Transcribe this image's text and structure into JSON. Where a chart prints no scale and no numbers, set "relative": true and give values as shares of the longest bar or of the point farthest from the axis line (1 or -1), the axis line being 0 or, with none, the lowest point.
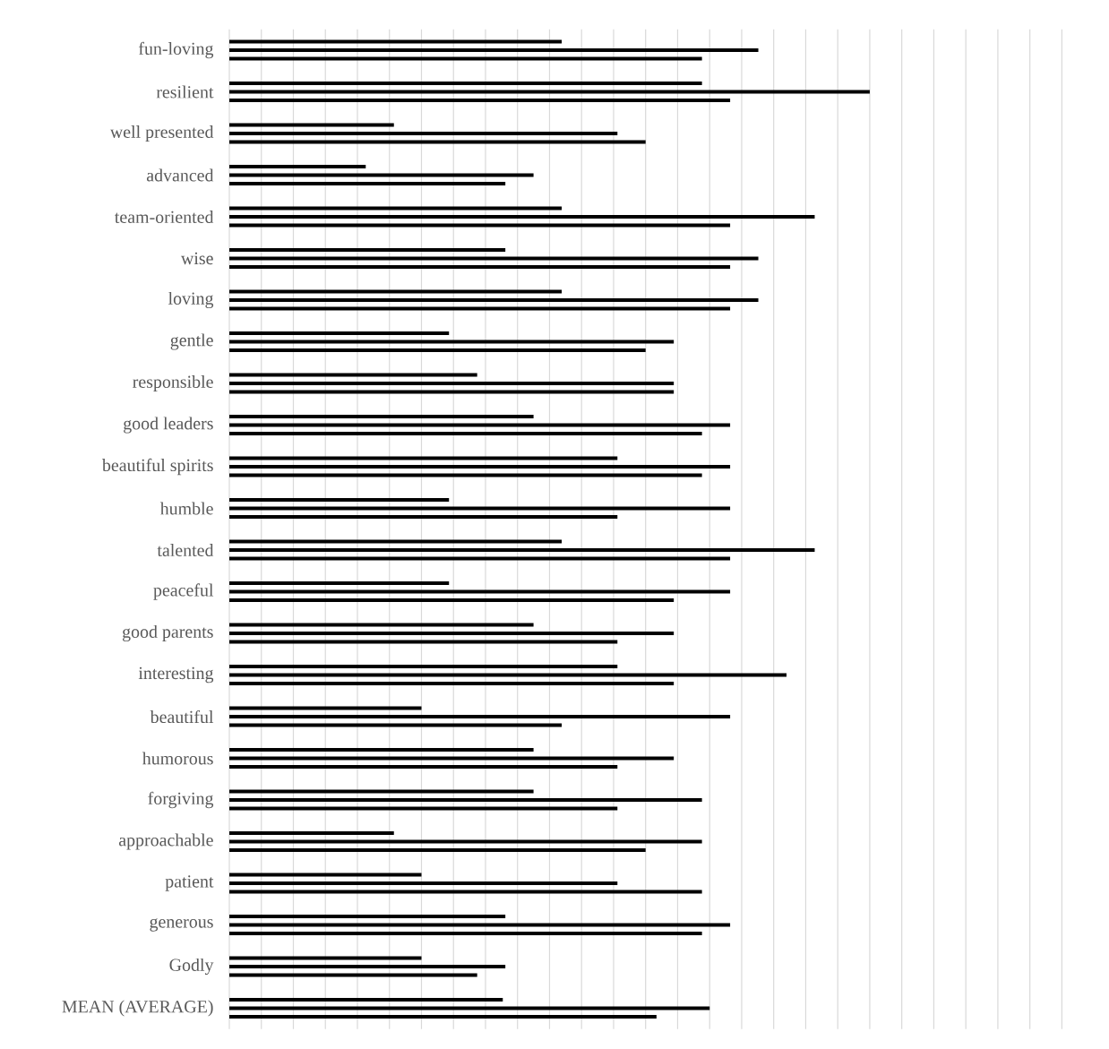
{
  "chart_data": {
    "type": "bar",
    "orientation": "horizontal",
    "relative": true,
    "grid": "x",
    "categories": [
      "fun-loving",
      "resilient",
      "well presented",
      "advanced",
      "team-oriented",
      "wise",
      "loving",
      "gentle",
      "responsible",
      "good leaders",
      "beautiful spirits",
      "humble",
      "talented",
      "peaceful",
      "good parents",
      "interesting",
      "beautiful",
      "humorous",
      "forgiving",
      "approachable",
      "patient",
      "generous",
      "Godly",
      "MEAN (AVERAGE)"
    ],
    "series": [
      {
        "color": "#000000",
        "values": [
          0.519,
          0.738,
          0.257,
          0.213,
          0.519,
          0.431,
          0.519,
          0.343,
          0.387,
          0.475,
          0.606,
          0.343,
          0.519,
          0.343,
          0.475,
          0.606,
          0.3,
          0.475,
          0.475,
          0.257,
          0.3,
          0.431,
          0.3,
          0.427
        ]
      },
      {
        "color": "#000000",
        "values": [
          0.826,
          1,
          0.606,
          0.475,
          0.914,
          0.826,
          0.826,
          0.694,
          0.694,
          0.782,
          0.782,
          0.782,
          0.914,
          0.782,
          0.694,
          0.87,
          0.782,
          0.694,
          0.738,
          0.738,
          0.606,
          0.782,
          0.431,
          0.75
        ]
      },
      {
        "color": "#000000",
        "values": [
          0.738,
          0.782,
          0.65,
          0.431,
          0.782,
          0.782,
          0.782,
          0.65,
          0.694,
          0.738,
          0.738,
          0.606,
          0.782,
          0.694,
          0.606,
          0.694,
          0.519,
          0.606,
          0.606,
          0.65,
          0.738,
          0.738,
          0.387,
          0.667
        ]
      }
    ]
  }
}
